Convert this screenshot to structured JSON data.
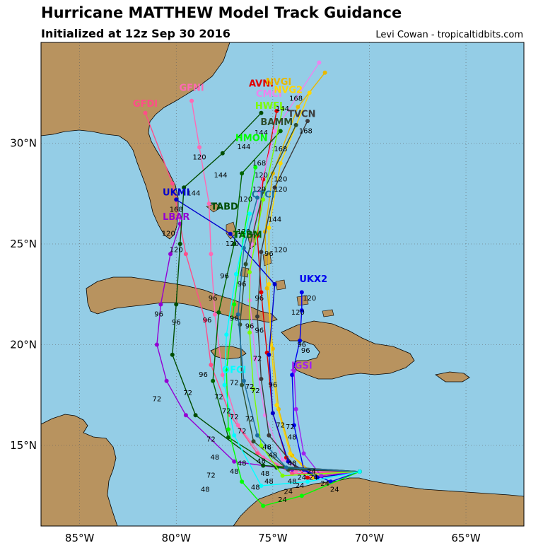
{
  "header": {
    "title": "Hurricane MATTHEW Model Track Guidance",
    "subtitle": "Initialized at 12z Sep 30 2016",
    "credit": "Levi Cowan - tropicaltidbits.com"
  },
  "map": {
    "lon_range": [
      -87,
      -62
    ],
    "lat_range": [
      11,
      35
    ],
    "x_ticks": [
      "85°W",
      "80°W",
      "75°W",
      "70°W",
      "65°W"
    ],
    "y_ticks": [
      "15°N",
      "20°N",
      "25°N",
      "30°N"
    ],
    "ocean_color": "#94cde6",
    "land_color": "#b8935f"
  },
  "models": [
    {
      "name": "AVNI",
      "color": "#e00000",
      "points": [
        [
          -70.5,
          13.7
        ],
        [
          -73.2,
          13.4
        ],
        [
          -74.3,
          14.4
        ],
        [
          -75.0,
          16.6
        ],
        [
          -75.3,
          19.6
        ],
        [
          -75.6,
          22.6
        ],
        [
          -75.8,
          25.4
        ],
        [
          -75.5,
          28.2
        ],
        [
          -74.8,
          31.6
        ]
      ],
      "label": [
        -75.6,
        32.8
      ]
    },
    {
      "name": "CMCI",
      "color": "#ee82ee",
      "points": [
        [
          -70.5,
          13.7
        ],
        [
          -73.0,
          13.5
        ],
        [
          -74.5,
          14.3
        ],
        [
          -75.4,
          16.5
        ],
        [
          -75.9,
          19.3
        ],
        [
          -76.2,
          22.2
        ],
        [
          -76.1,
          25.0
        ],
        [
          -75.7,
          27.6
        ],
        [
          -74.9,
          30.6
        ],
        [
          -72.6,
          34.0
        ]
      ],
      "label": [
        -75.2,
        32.3
      ]
    },
    {
      "name": "NVGI",
      "color": "#e8b800",
      "points": [
        [
          -70.5,
          13.7
        ],
        [
          -72.8,
          13.5
        ],
        [
          -74.0,
          14.5
        ],
        [
          -74.7,
          16.8
        ],
        [
          -75.0,
          19.8
        ],
        [
          -75.3,
          22.8
        ],
        [
          -75.4,
          25.6
        ],
        [
          -75.0,
          28.5
        ],
        [
          -73.7,
          31.8
        ],
        [
          -72.3,
          33.5
        ]
      ],
      "label": [
        -74.7,
        32.9
      ]
    },
    {
      "name": "NVG2",
      "color": "#ffd700",
      "points": [
        [
          -70.5,
          13.7
        ],
        [
          -72.9,
          13.4
        ],
        [
          -74.1,
          14.6
        ],
        [
          -74.8,
          17.0
        ],
        [
          -75.1,
          20.0
        ],
        [
          -75.2,
          23.0
        ],
        [
          -75.2,
          25.8
        ],
        [
          -74.6,
          29.0
        ],
        [
          -73.1,
          32.5
        ]
      ],
      "label": [
        -74.2,
        32.5
      ]
    },
    {
      "name": "GFDI",
      "color": "#ff4d88",
      "points": [
        [
          -70.5,
          13.7
        ],
        [
          -74.0,
          13.6
        ],
        [
          -75.8,
          14.6
        ],
        [
          -77.2,
          16.5
        ],
        [
          -78.2,
          19.0
        ],
        [
          -78.5,
          21.2
        ],
        [
          -79.5,
          24.5
        ],
        [
          -80.2,
          28.0
        ],
        [
          -81.6,
          31.5
        ]
      ],
      "label": [
        -81.6,
        31.8
      ]
    },
    {
      "name": "GFNI",
      "color": "#ff69b4",
      "points": [
        [
          -70.5,
          13.7
        ],
        [
          -73.8,
          13.7
        ],
        [
          -75.5,
          14.4
        ],
        [
          -76.8,
          16.0
        ],
        [
          -77.6,
          18.5
        ],
        [
          -78.0,
          21.5
        ],
        [
          -78.2,
          24.5
        ],
        [
          -78.3,
          27.0
        ],
        [
          -78.8,
          29.8
        ],
        [
          -79.2,
          32.1
        ]
      ],
      "label": [
        -79.2,
        32.6
      ]
    },
    {
      "name": "UKX2",
      "color": "#0000ee",
      "points": [
        [
          -70.5,
          13.7
        ],
        [
          -72.0,
          13.2
        ],
        [
          -73.4,
          13.8
        ],
        [
          -73.9,
          16.0
        ],
        [
          -74.0,
          18.5
        ],
        [
          -73.6,
          20.2
        ],
        [
          -73.5,
          21.7
        ],
        [
          -73.5,
          22.6
        ]
      ],
      "label": [
        -72.9,
        23.1
      ]
    },
    {
      "name": "UKMI",
      "color": "#0000cc",
      "points": [
        [
          -70.5,
          13.7
        ],
        [
          -72.7,
          13.4
        ],
        [
          -74.2,
          14.2
        ],
        [
          -75.0,
          16.6
        ],
        [
          -75.2,
          19.5
        ],
        [
          -74.9,
          23.0
        ],
        [
          -77.2,
          25.5
        ],
        [
          -80.0,
          27.2
        ]
      ],
      "label": [
        -80.0,
        27.4
      ]
    },
    {
      "name": "LBAR",
      "color": "#9400d3",
      "points": [
        [
          -70.5,
          13.7
        ],
        [
          -74.0,
          13.8
        ],
        [
          -77.0,
          14.2
        ],
        [
          -79.5,
          16.5
        ],
        [
          -80.5,
          18.2
        ],
        [
          -81.0,
          20.0
        ],
        [
          -80.8,
          22.0
        ],
        [
          -80.3,
          24.5
        ],
        [
          -79.8,
          26.0
        ]
      ],
      "label": [
        -80.0,
        26.2
      ]
    },
    {
      "name": "JGSI",
      "color": "#a020f0",
      "points": [
        [
          -70.5,
          13.7
        ],
        [
          -72.5,
          13.5
        ],
        [
          -73.4,
          14.6
        ],
        [
          -73.8,
          16.8
        ],
        [
          -73.9,
          18.7
        ]
      ],
      "label": [
        -73.5,
        18.8
      ]
    },
    {
      "name": "TABD",
      "color": "#004d00",
      "points": [
        [
          -70.5,
          13.7
        ],
        [
          -75.5,
          14.0
        ],
        [
          -79.0,
          16.5
        ],
        [
          -80.2,
          19.5
        ],
        [
          -80.0,
          22.0
        ],
        [
          -79.8,
          25.0
        ],
        [
          -79.6,
          27.8
        ],
        [
          -77.6,
          29.5
        ],
        [
          -75.6,
          31.5
        ]
      ],
      "label": [
        -77.5,
        26.7
      ]
    },
    {
      "name": "TABM",
      "color": "#006400",
      "points": [
        [
          -70.5,
          13.7
        ],
        [
          -74.8,
          13.9
        ],
        [
          -77.3,
          15.4
        ],
        [
          -78.1,
          18.2
        ],
        [
          -77.8,
          21.6
        ],
        [
          -77.0,
          25.0
        ],
        [
          -76.6,
          28.5
        ],
        [
          -74.6,
          30.6
        ]
      ],
      "label": [
        -76.3,
        25.3
      ]
    },
    {
      "name": "BAMM",
      "color": "#2f4f2f",
      "points": [
        [
          -70.5,
          13.7
        ],
        [
          -74.2,
          13.8
        ],
        [
          -76.0,
          15.2
        ],
        [
          -76.6,
          18.0
        ],
        [
          -76.7,
          21.0
        ],
        [
          -76.4,
          24.0
        ],
        [
          -75.5,
          27.6
        ],
        [
          -73.8,
          30.9
        ]
      ],
      "label": [
        -74.8,
        30.9
      ]
    },
    {
      "name": "TVCN",
      "color": "#3c3c3c",
      "points": [
        [
          -70.5,
          13.7
        ],
        [
          -73.8,
          13.9
        ],
        [
          -75.2,
          15.5
        ],
        [
          -75.6,
          18.3
        ],
        [
          -75.8,
          21.4
        ],
        [
          -75.6,
          24.6
        ],
        [
          -74.9,
          27.8
        ],
        [
          -73.2,
          31.1
        ]
      ],
      "label": [
        -73.5,
        31.3
      ]
    },
    {
      "name": "HWFI",
      "color": "#7cfc00",
      "points": [
        [
          -70.5,
          13.7
        ],
        [
          -74.5,
          13.5
        ],
        [
          -75.6,
          15.0
        ],
        [
          -76.0,
          17.8
        ],
        [
          -76.2,
          20.6
        ],
        [
          -76.2,
          23.6
        ],
        [
          -75.5,
          27.2
        ],
        [
          -74.5,
          31.7
        ]
      ],
      "label": [
        -75.2,
        31.7
      ]
    },
    {
      "name": "HMON",
      "color": "#00ff00",
      "points": [
        [
          -70.5,
          13.7
        ],
        [
          -73.5,
          12.5
        ],
        [
          -75.5,
          12.0
        ],
        [
          -76.6,
          13.2
        ],
        [
          -77.3,
          15.8
        ],
        [
          -77.4,
          18.7
        ],
        [
          -77.0,
          22.0
        ],
        [
          -76.5,
          25.5
        ],
        [
          -75.9,
          28.8
        ]
      ],
      "label": [
        -76.1,
        30.1
      ]
    },
    {
      "name": "CTCI",
      "color": "#1c6fa0",
      "points": [
        [
          -70.5,
          13.7
        ],
        [
          -74.3,
          13.9
        ],
        [
          -75.8,
          15.5
        ],
        [
          -76.5,
          18.2
        ],
        [
          -76.8,
          21.5
        ],
        [
          -76.5,
          24.8
        ],
        [
          -75.8,
          27.3
        ]
      ],
      "label": [
        -75.5,
        27.3
      ]
    },
    {
      "name": "OFCI",
      "color": "#00ffff",
      "points": [
        [
          -70.5,
          13.7
        ],
        [
          -73.2,
          13.2
        ],
        [
          -75.6,
          13.0
        ],
        [
          -77.0,
          15.5
        ],
        [
          -77.5,
          18.0
        ],
        [
          -77.4,
          20.5
        ],
        [
          -76.9,
          23.5
        ],
        [
          -76.2,
          26.5
        ]
      ],
      "label": [
        -77.0,
        18.6
      ]
    }
  ],
  "hour_labels": [
    {
      "t": "168",
      "lon": -73.8,
      "lat": 32.1
    },
    {
      "t": "168",
      "lon": -73.3,
      "lat": 30.5
    },
    {
      "t": "168",
      "lon": -74.6,
      "lat": 29.6
    },
    {
      "t": "168",
      "lon": -75.7,
      "lat": 28.9
    },
    {
      "t": "168",
      "lon": -80.0,
      "lat": 26.6
    },
    {
      "t": "144",
      "lon": -74.5,
      "lat": 31.6
    },
    {
      "t": "144",
      "lon": -75.6,
      "lat": 30.4
    },
    {
      "t": "144",
      "lon": -76.5,
      "lat": 29.7
    },
    {
      "t": "144",
      "lon": -77.7,
      "lat": 28.3
    },
    {
      "t": "144",
      "lon": -79.1,
      "lat": 27.4
    },
    {
      "t": "144",
      "lon": -74.9,
      "lat": 26.1
    },
    {
      "t": "120",
      "lon": -78.8,
      "lat": 29.2
    },
    {
      "t": "120",
      "lon": -75.6,
      "lat": 28.3
    },
    {
      "t": "120",
      "lon": -74.6,
      "lat": 28.1
    },
    {
      "t": "120",
      "lon": -74.6,
      "lat": 27.6
    },
    {
      "t": "120",
      "lon": -75.7,
      "lat": 27.6
    },
    {
      "t": "120",
      "lon": -76.4,
      "lat": 27.1
    },
    {
      "t": "120",
      "lon": -80.4,
      "lat": 25.4
    },
    {
      "t": "120",
      "lon": -80.0,
      "lat": 24.6
    },
    {
      "t": "120",
      "lon": -77.1,
      "lat": 24.9
    },
    {
      "t": "120",
      "lon": -74.6,
      "lat": 24.6
    },
    {
      "t": "120",
      "lon": -73.1,
      "lat": 22.2
    },
    {
      "t": "120",
      "lon": -73.7,
      "lat": 21.5
    },
    {
      "t": "120",
      "lon": -76.5,
      "lat": 25.5
    },
    {
      "t": "96",
      "lon": -77.5,
      "lat": 23.3
    },
    {
      "t": "96",
      "lon": -76.6,
      "lat": 22.9
    },
    {
      "t": "96",
      "lon": -78.1,
      "lat": 22.2
    },
    {
      "t": "96",
      "lon": -75.2,
      "lat": 24.4
    },
    {
      "t": "96",
      "lon": -75.7,
      "lat": 22.2
    },
    {
      "t": "96",
      "lon": -80.9,
      "lat": 21.4
    },
    {
      "t": "96",
      "lon": -80.0,
      "lat": 21.0
    },
    {
      "t": "96",
      "lon": -78.4,
      "lat": 21.1
    },
    {
      "t": "96",
      "lon": -77.0,
      "lat": 21.2
    },
    {
      "t": "96",
      "lon": -76.2,
      "lat": 20.8
    },
    {
      "t": "96",
      "lon": -73.3,
      "lat": 19.6
    },
    {
      "t": "96",
      "lon": -73.5,
      "lat": 19.9
    },
    {
      "t": "96",
      "lon": -78.6,
      "lat": 18.4
    },
    {
      "t": "96",
      "lon": -75.0,
      "lat": 17.9
    },
    {
      "t": "96",
      "lon": -75.7,
      "lat": 20.6
    },
    {
      "t": "72",
      "lon": -75.8,
      "lat": 19.2
    },
    {
      "t": "72",
      "lon": -77.0,
      "lat": 18.0
    },
    {
      "t": "72",
      "lon": -77.8,
      "lat": 17.3
    },
    {
      "t": "72",
      "lon": -76.2,
      "lat": 17.8
    },
    {
      "t": "72",
      "lon": -81.0,
      "lat": 17.2
    },
    {
      "t": "72",
      "lon": -79.4,
      "lat": 17.5
    },
    {
      "t": "72",
      "lon": -77.4,
      "lat": 16.6
    },
    {
      "t": "72",
      "lon": -77.0,
      "lat": 16.3
    },
    {
      "t": "72",
      "lon": -76.2,
      "lat": 16.2
    },
    {
      "t": "72",
      "lon": -74.6,
      "lat": 15.9
    },
    {
      "t": "72",
      "lon": -74.1,
      "lat": 15.8
    },
    {
      "t": "72",
      "lon": -78.2,
      "lat": 15.2
    },
    {
      "t": "72",
      "lon": -76.6,
      "lat": 15.6
    },
    {
      "t": "72",
      "lon": -78.2,
      "lat": 13.4
    },
    {
      "t": "72",
      "lon": -75.9,
      "lat": 17.6
    },
    {
      "t": "48",
      "lon": -78.0,
      "lat": 14.3
    },
    {
      "t": "48",
      "lon": -76.6,
      "lat": 14.0
    },
    {
      "t": "48",
      "lon": -77.0,
      "lat": 13.6
    },
    {
      "t": "48",
      "lon": -75.6,
      "lat": 14.1
    },
    {
      "t": "48",
      "lon": -75.3,
      "lat": 14.8
    },
    {
      "t": "48",
      "lon": -74.0,
      "lat": 15.3
    },
    {
      "t": "48",
      "lon": -74.0,
      "lat": 14.0
    },
    {
      "t": "48",
      "lon": -75.4,
      "lat": 13.5
    },
    {
      "t": "48",
      "lon": -75.9,
      "lat": 12.8
    },
    {
      "t": "48",
      "lon": -78.5,
      "lat": 12.7
    },
    {
      "t": "48",
      "lon": -75.0,
      "lat": 14.4
    },
    {
      "t": "48",
      "lon": -75.2,
      "lat": 13.1
    },
    {
      "t": "48",
      "lon": -74.0,
      "lat": 13.1
    },
    {
      "t": "24",
      "lon": -73.5,
      "lat": 13.3
    },
    {
      "t": "24",
      "lon": -72.9,
      "lat": 13.3
    },
    {
      "t": "24",
      "lon": -72.3,
      "lat": 13.0
    },
    {
      "t": "24",
      "lon": -71.8,
      "lat": 12.7
    },
    {
      "t": "24",
      "lon": -73.6,
      "lat": 12.9
    },
    {
      "t": "24",
      "lon": -74.2,
      "lat": 12.6
    },
    {
      "t": "24",
      "lon": -73.0,
      "lat": 13.6
    },
    {
      "t": "24",
      "lon": -74.5,
      "lat": 12.2
    }
  ]
}
